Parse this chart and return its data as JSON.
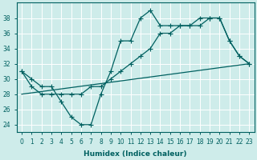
{
  "xlabel": "Humidex (Indice chaleur)",
  "bg_color": "#ceecea",
  "grid_color": "#ffffff",
  "line_color": "#006060",
  "xlim": [
    -0.5,
    23.5
  ],
  "ylim": [
    23,
    40
  ],
  "yticks": [
    24,
    26,
    28,
    30,
    32,
    34,
    36,
    38
  ],
  "xticks": [
    0,
    1,
    2,
    3,
    4,
    5,
    6,
    7,
    8,
    9,
    10,
    11,
    12,
    13,
    14,
    15,
    16,
    17,
    18,
    19,
    20,
    21,
    22,
    23
  ],
  "series1_x": [
    0,
    1,
    2,
    3,
    4,
    5,
    6,
    7,
    8,
    9,
    10,
    11,
    12,
    13,
    14,
    15,
    16,
    17,
    18,
    19,
    20,
    21,
    22,
    23
  ],
  "series1_y": [
    31,
    30,
    29,
    29,
    27,
    25,
    24,
    24,
    28,
    31,
    35,
    35,
    38,
    39,
    37,
    37,
    37,
    37,
    37,
    38,
    38,
    35,
    33,
    32
  ],
  "series2_x": [
    0,
    1,
    2,
    3,
    4,
    5,
    6,
    7,
    8,
    9,
    10,
    11,
    12,
    13,
    14,
    15,
    16,
    17,
    18,
    19,
    20,
    21,
    22,
    23
  ],
  "series2_y": [
    31,
    29,
    28,
    28,
    28,
    28,
    28,
    29,
    29,
    30,
    31,
    32,
    33,
    34,
    36,
    36,
    37,
    37,
    38,
    38,
    38,
    35,
    33,
    32
  ],
  "series3_x": [
    0,
    23
  ],
  "series3_y": [
    28,
    32
  ]
}
